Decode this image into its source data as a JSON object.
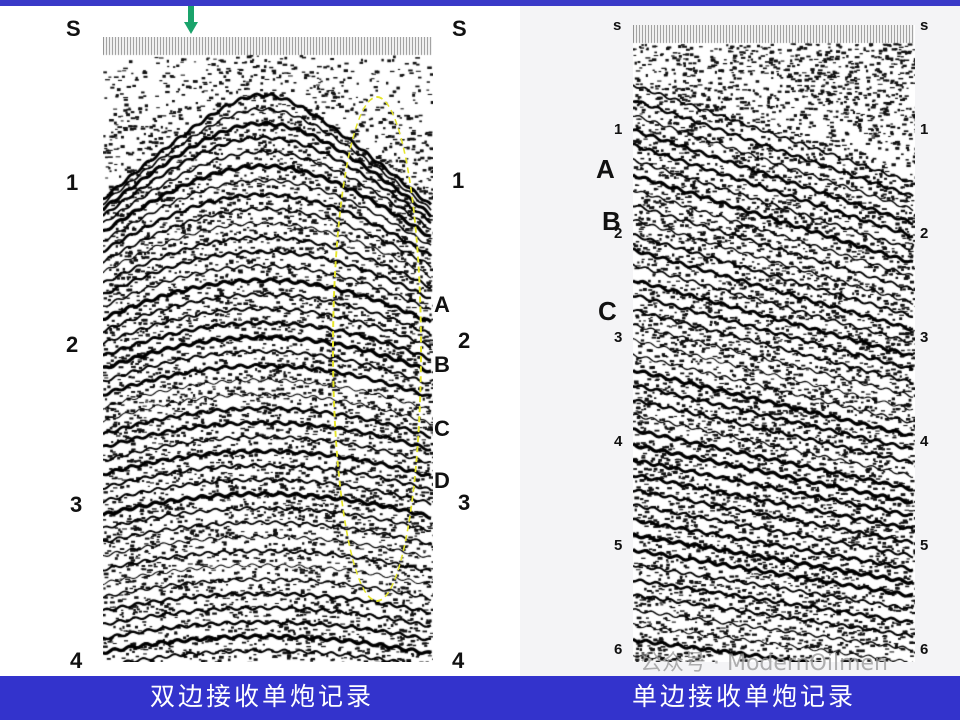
{
  "left_panel": {
    "caption": "双边接收单炮记录",
    "axis_left": [
      "S",
      "1",
      "2",
      "3",
      "4"
    ],
    "axis_right": [
      "S",
      "1",
      "2",
      "3",
      "4"
    ],
    "events": [
      "A",
      "B",
      "C",
      "D"
    ]
  },
  "right_panel": {
    "caption": "单边接收单炮记录",
    "axis_left": [
      "s",
      "1",
      "2",
      "3",
      "4",
      "5",
      "6"
    ],
    "axis_right": [
      "s",
      "1",
      "2",
      "3",
      "4",
      "5",
      "6"
    ],
    "events": [
      "A",
      "B",
      "C"
    ]
  },
  "watermark": "公众号 · ModernOilmen",
  "colors": {
    "bar": "#3333cc",
    "arrow": "#1aa36b",
    "ellipse": "#e6e62a"
  }
}
